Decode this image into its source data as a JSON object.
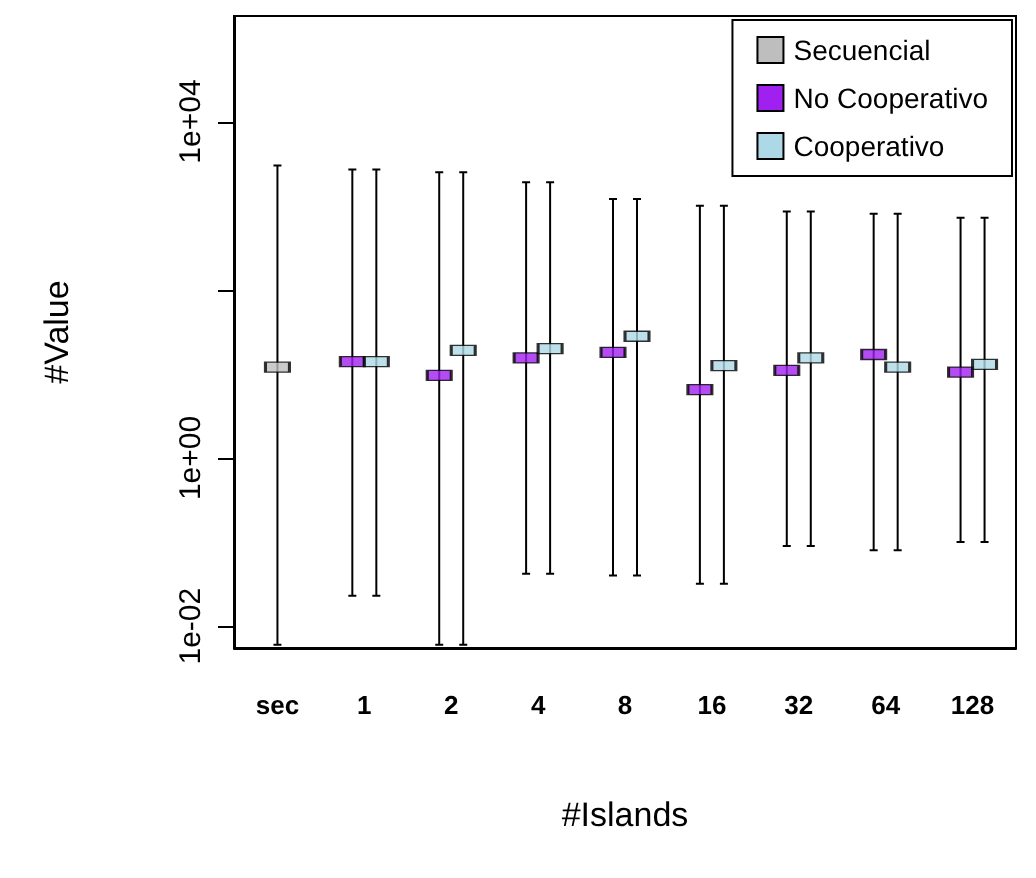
{
  "chart_data": {
    "type": "scatter",
    "xlabel": "#Islands",
    "ylabel": "#Value",
    "categories": [
      "sec",
      "1",
      "2",
      "4",
      "8",
      "16",
      "32",
      "64",
      "128"
    ],
    "series": [
      {
        "name": "Secuencial",
        "color": "#bebebe",
        "values": [
          12,
          null,
          null,
          null,
          null,
          null,
          null,
          null,
          null
        ],
        "errors": [
          [
            0.006,
            3000
          ],
          null,
          null,
          null,
          null,
          null,
          null,
          null,
          null
        ]
      },
      {
        "name": "No Cooperativo",
        "color": "#a020f0",
        "values": [
          null,
          14,
          9.6,
          15.5,
          18,
          6.5,
          11,
          17,
          10.5
        ],
        "errors": [
          null,
          [
            0.023,
            2700
          ],
          [
            0.006,
            2500
          ],
          [
            0.042,
            1900
          ],
          [
            0.04,
            1200
          ],
          [
            0.032,
            1000
          ],
          [
            0.09,
            850
          ],
          [
            0.08,
            800
          ],
          [
            0.1,
            720
          ]
        ]
      },
      {
        "name": "Cooperativo",
        "color": "#add8e6",
        "values": [
          null,
          14,
          19,
          20,
          28,
          12.5,
          15.5,
          12,
          13
        ],
        "errors": [
          null,
          [
            0.023,
            2700
          ],
          [
            0.006,
            2500
          ],
          [
            0.042,
            1900
          ],
          [
            0.04,
            1200
          ],
          [
            0.032,
            1000
          ],
          [
            0.09,
            850
          ],
          [
            0.08,
            800
          ],
          [
            0.1,
            720
          ]
        ]
      }
    ],
    "log": "y",
    "ylim": [
      0.0055,
      180000
    ],
    "yticks": [
      {
        "value": 0.01,
        "label": "1e-02"
      },
      {
        "value": 1,
        "label": "1e+00"
      },
      {
        "value": 100,
        "label": null
      },
      {
        "value": 10000,
        "label": "1e+04"
      }
    ],
    "legend": "top right",
    "grid": false
  }
}
